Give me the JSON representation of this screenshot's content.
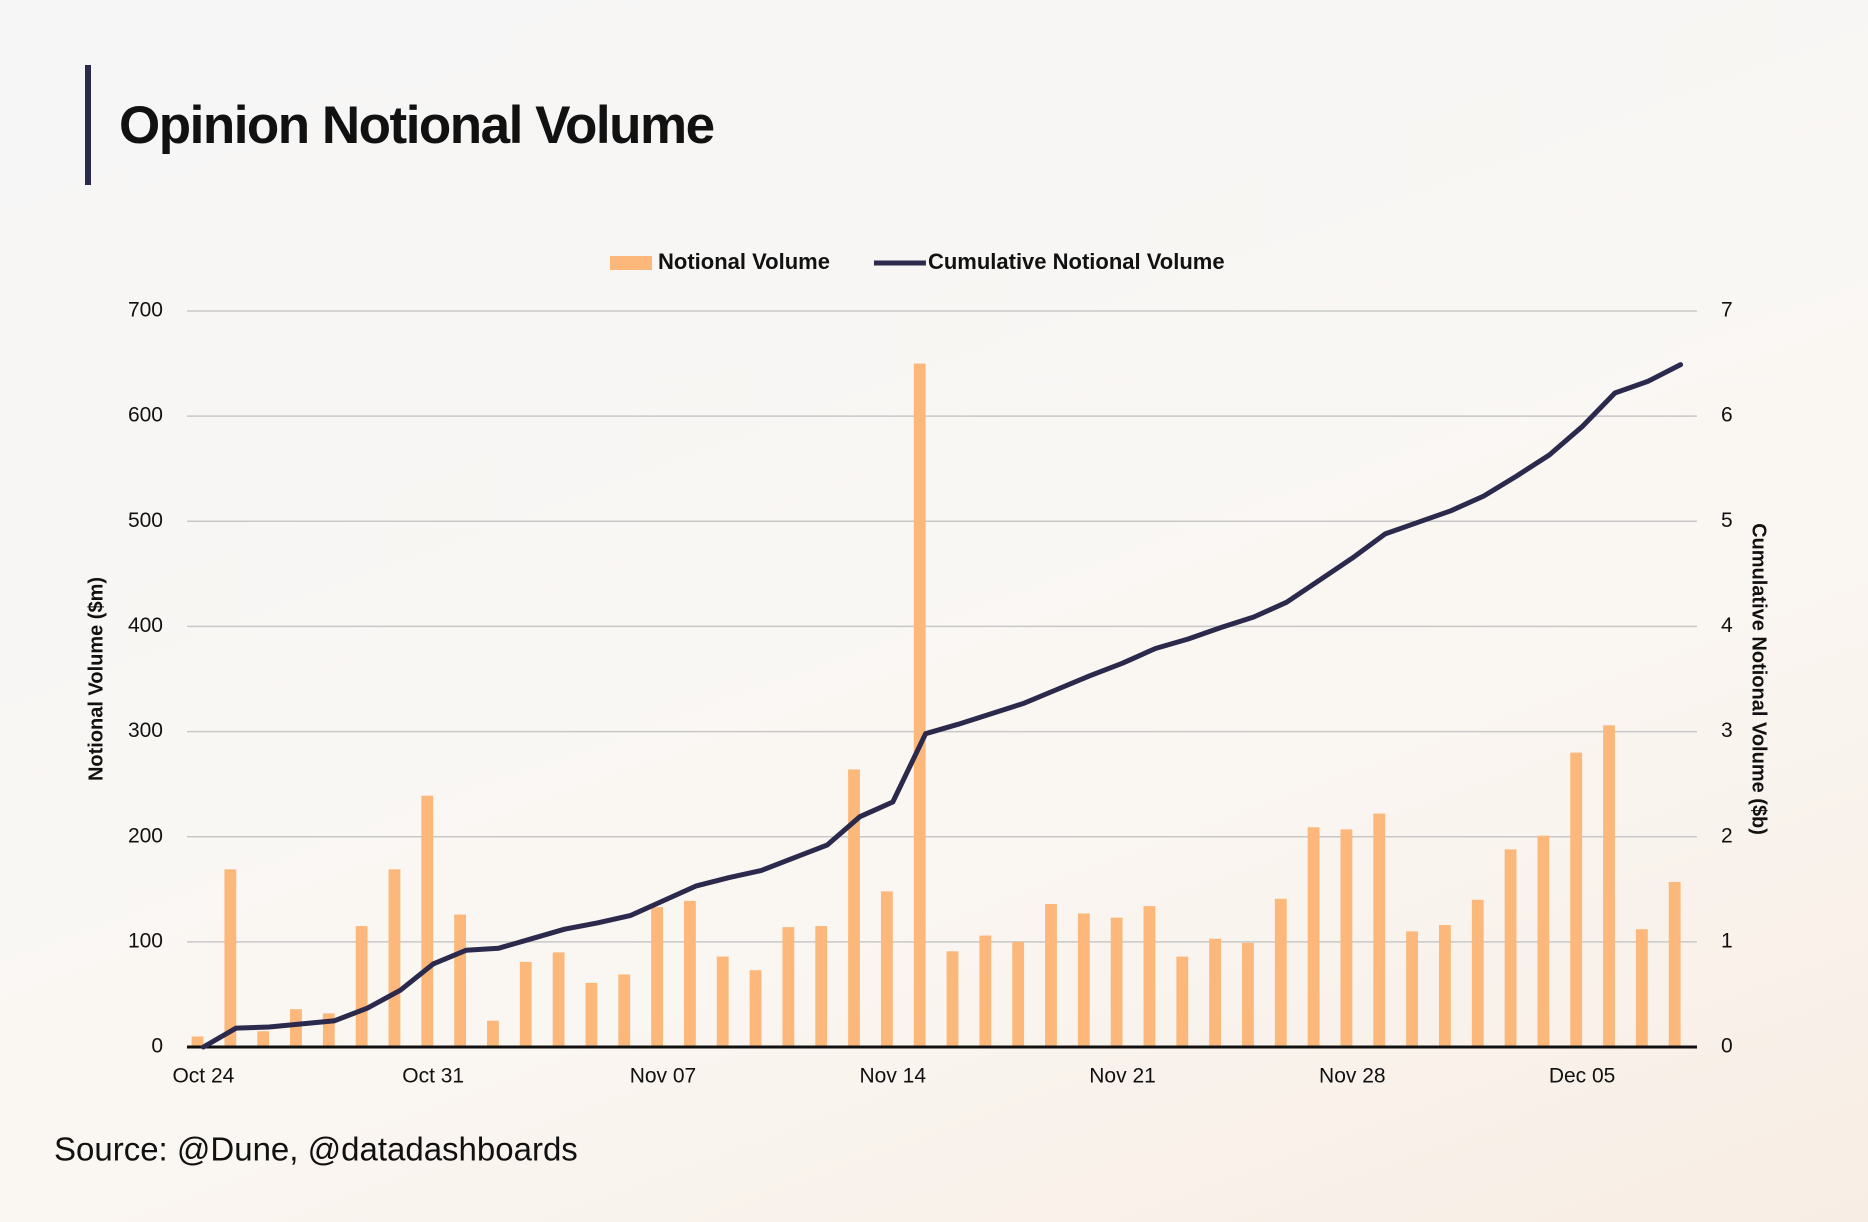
{
  "chart_data": {
    "type": "bar",
    "title": "Opinion Notional Volume",
    "source": "Source: @Dune, @datadashboards",
    "ylabel": "Notional Volume ($m)",
    "y2label": "Cumulative Notional Volume ($b)",
    "categories": [
      "Oct 24",
      null,
      null,
      null,
      null,
      null,
      null,
      "Oct 31",
      null,
      null,
      null,
      null,
      null,
      null,
      "Nov 07",
      null,
      null,
      null,
      null,
      null,
      null,
      "Nov 14",
      null,
      null,
      null,
      null,
      null,
      null,
      "Nov 21",
      null,
      null,
      null,
      null,
      null,
      null,
      "Nov 28",
      null,
      null,
      null,
      null,
      null,
      null,
      "Dec 05",
      null,
      null,
      null
    ],
    "series": [
      {
        "name": "Notional Volume",
        "type": "bar",
        "color": "#fbb87a",
        "values": [
          10,
          169,
          15,
          36,
          32,
          115,
          169,
          239,
          126,
          25,
          81,
          90,
          61,
          69,
          133,
          139,
          86,
          73,
          114,
          115,
          264,
          148,
          650,
          91,
          106,
          100,
          136,
          127,
          123,
          134,
          86,
          103,
          99,
          141,
          209,
          207,
          222,
          110,
          116,
          140,
          188,
          201,
          280,
          306,
          112,
          157
        ]
      },
      {
        "name": "Cumulative Notional Volume",
        "type": "line",
        "axis": "y2",
        "color": "#2b2a4c",
        "values": [
          0,
          0.18,
          0.19,
          0.22,
          0.25,
          0.37,
          0.54,
          0.79,
          0.92,
          0.94,
          1.03,
          1.12,
          1.18,
          1.25,
          1.39,
          1.53,
          1.61,
          1.68,
          1.8,
          1.92,
          2.19,
          2.33,
          2.98,
          3.07,
          3.17,
          3.27,
          3.4,
          3.53,
          3.65,
          3.79,
          3.88,
          3.99,
          4.09,
          4.23,
          4.44,
          4.65,
          4.88,
          4.99,
          5.1,
          5.24,
          5.43,
          5.63,
          5.9,
          6.22,
          6.33,
          6.49
        ]
      }
    ],
    "ylim": [
      0,
      700
    ],
    "yticks": [
      0,
      100,
      200,
      300,
      400,
      500,
      600,
      700
    ],
    "y2lim": [
      0,
      7
    ],
    "y2ticks": [
      0,
      1,
      2,
      3,
      4,
      5,
      6,
      7
    ],
    "grid": true,
    "legend": "top"
  }
}
